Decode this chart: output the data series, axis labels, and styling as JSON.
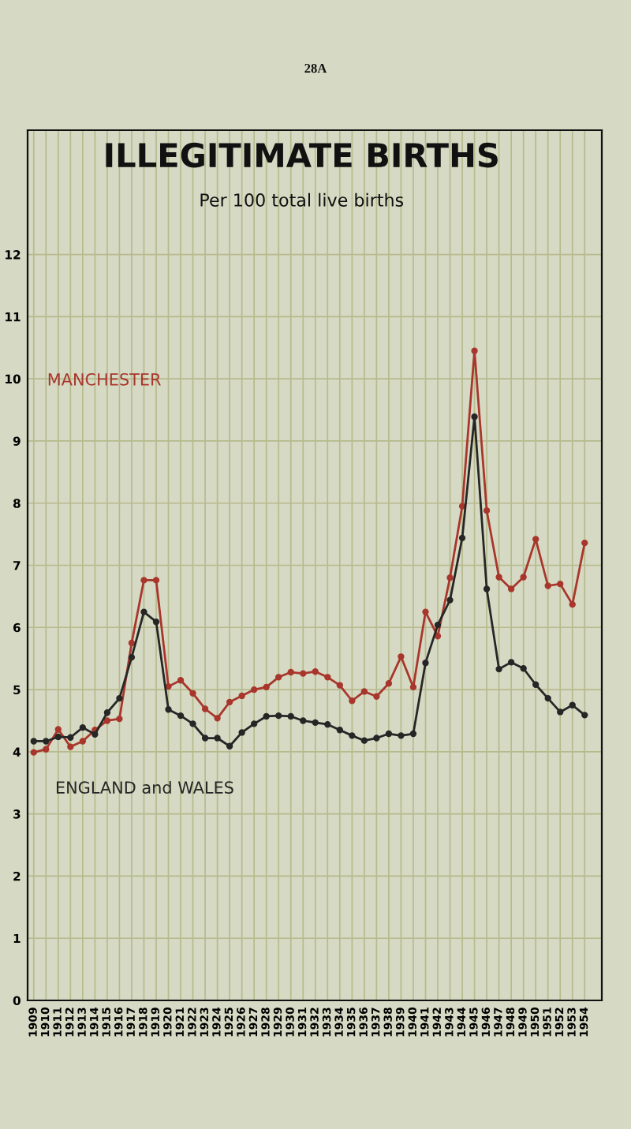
{
  "chart_data": {
    "type": "line",
    "title": "ILLEGITIMATE BIRTHS",
    "subtitle": "Per 100 total live births",
    "annotations": [
      "28A"
    ],
    "categories": [
      "1909",
      "1910",
      "1911",
      "1912",
      "1913",
      "1914",
      "1915",
      "1916",
      "1917",
      "1918",
      "1919",
      "1920",
      "1921",
      "1922",
      "1923",
      "1924",
      "1925",
      "1926",
      "1927",
      "1928",
      "1929",
      "1930",
      "1931",
      "1932",
      "1933",
      "1934",
      "1935",
      "1936",
      "1937",
      "1938",
      "1939",
      "1940",
      "1941",
      "1942",
      "1943",
      "1944",
      "1945",
      "1946",
      "1947",
      "1948",
      "1949",
      "1950",
      "1951",
      "1952",
      "1953",
      "1954"
    ],
    "series": [
      {
        "name": "MANCHESTER",
        "color": "#a8362c",
        "values": [
          3.99,
          4.04,
          4.36,
          4.08,
          4.17,
          4.35,
          4.5,
          4.53,
          5.75,
          6.76,
          6.76,
          5.05,
          5.15,
          4.94,
          4.69,
          4.54,
          4.8,
          4.9,
          5.0,
          5.04,
          5.2,
          5.28,
          5.26,
          5.29,
          5.2,
          5.07,
          4.82,
          4.97,
          4.89,
          5.1,
          5.53,
          5.04,
          6.25,
          5.86,
          6.8,
          7.95,
          10.45,
          7.88,
          6.81,
          6.62,
          6.81,
          7.42,
          6.67,
          6.7,
          6.37,
          7.36
        ]
      },
      {
        "name": "ENGLAND and WALES",
        "color": "#262626",
        "values": [
          4.17,
          4.17,
          4.24,
          4.23,
          4.39,
          4.28,
          4.63,
          4.86,
          5.52,
          6.25,
          6.09,
          4.68,
          4.58,
          4.45,
          4.22,
          4.22,
          4.09,
          4.31,
          4.45,
          4.57,
          4.58,
          4.57,
          4.5,
          4.47,
          4.44,
          4.35,
          4.26,
          4.18,
          4.22,
          4.29,
          4.26,
          4.29,
          5.43,
          6.04,
          6.44,
          7.44,
          9.39,
          6.62,
          5.33,
          5.44,
          5.34,
          5.08,
          4.86,
          4.64,
          4.75,
          4.59
        ]
      }
    ],
    "ylim": [
      0,
      14
    ],
    "yticks": [
      0,
      1,
      2,
      3,
      4,
      5,
      6,
      7,
      8,
      9,
      10,
      11,
      12
    ],
    "grid": true,
    "legend": false,
    "marker": "circle",
    "line_style": "solid"
  }
}
